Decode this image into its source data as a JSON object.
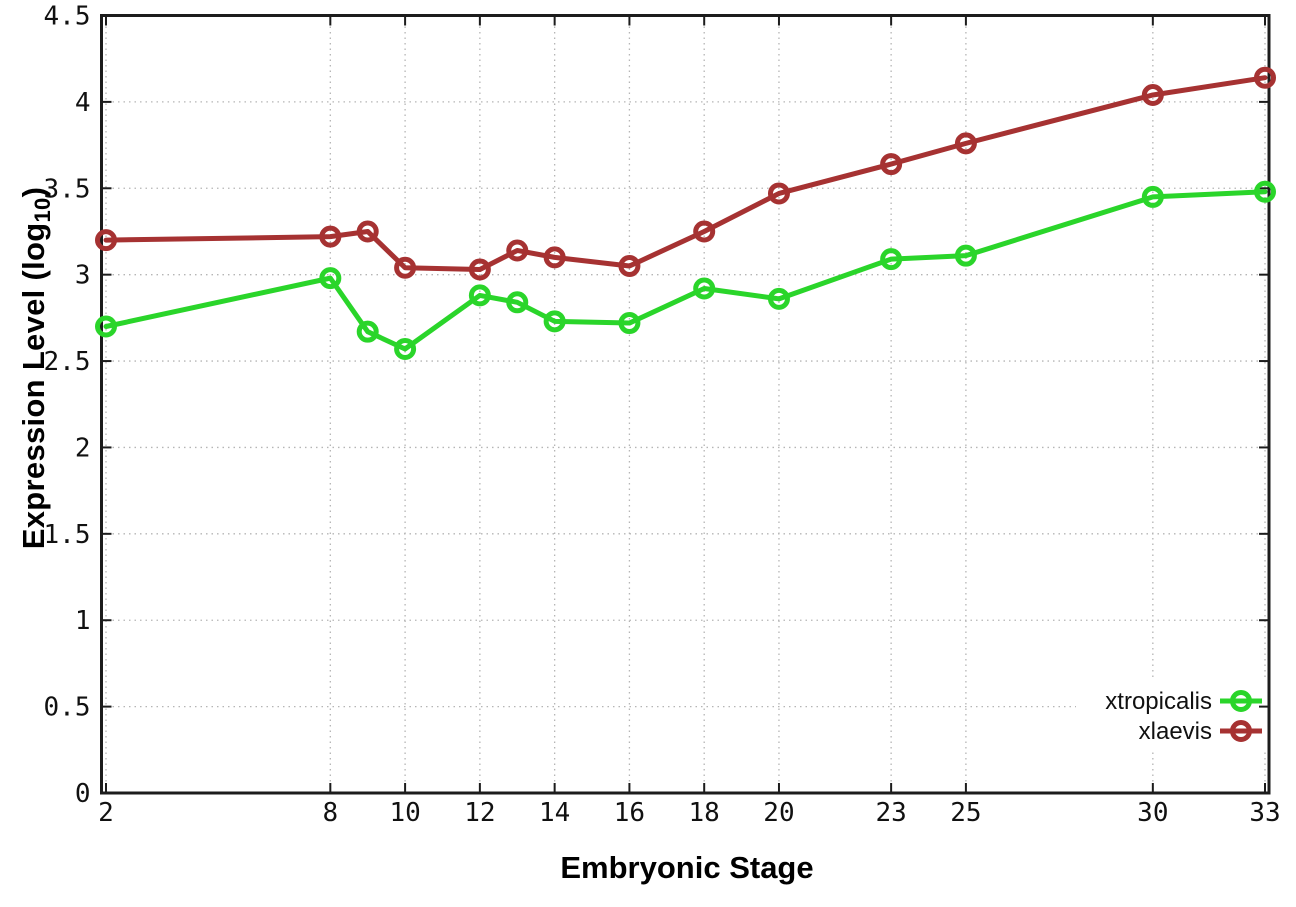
{
  "chart_data": {
    "type": "line",
    "title": "",
    "xlabel": "Embryonic Stage",
    "ylabel": "Expression Level (log10)",
    "ylabel_parts": {
      "prefix": "Expression Level (log",
      "sub": "10",
      "suffix": ")"
    },
    "x": [
      2,
      8,
      9,
      10,
      12,
      13,
      14,
      16,
      18,
      20,
      23,
      25,
      30,
      33
    ],
    "series": [
      {
        "name": "xtropicalis",
        "color": "#2ad52a",
        "values": [
          2.7,
          2.98,
          2.67,
          2.57,
          2.88,
          2.84,
          2.73,
          2.72,
          2.92,
          2.86,
          3.09,
          3.11,
          3.45,
          3.48
        ]
      },
      {
        "name": "xlaevis",
        "color": "#a63232",
        "values": [
          3.2,
          3.22,
          3.25,
          3.04,
          3.03,
          3.14,
          3.1,
          3.05,
          3.25,
          3.47,
          3.64,
          3.76,
          4.04,
          4.14
        ]
      }
    ],
    "xlim": [
      2,
      33
    ],
    "ylim": [
      0,
      4.5
    ],
    "xtick_values": [
      2,
      8,
      10,
      12,
      14,
      16,
      18,
      20,
      23,
      25,
      30,
      33
    ],
    "xtick_labels": [
      "2",
      "8",
      "10",
      "12",
      "14",
      "16",
      "18",
      "20",
      "23",
      "25",
      "30",
      "33"
    ],
    "ytick_values": [
      0,
      0.5,
      1,
      1.5,
      2,
      2.5,
      3,
      3.5,
      4,
      4.5
    ],
    "ytick_labels": [
      "0",
      "0.5",
      "1",
      "1.5",
      "2",
      "2.5",
      "3",
      "3.5",
      "4",
      "4.5"
    ],
    "grid": true,
    "legend_position": "bottom-right-inside",
    "legend_entries": [
      "xtropicalis",
      "xlaevis"
    ],
    "colors": {
      "border": "#1c1c1c",
      "grid": "#b5b5b5",
      "tick_text": "#111111",
      "background": "#ffffff"
    },
    "marker": "open-circle"
  }
}
